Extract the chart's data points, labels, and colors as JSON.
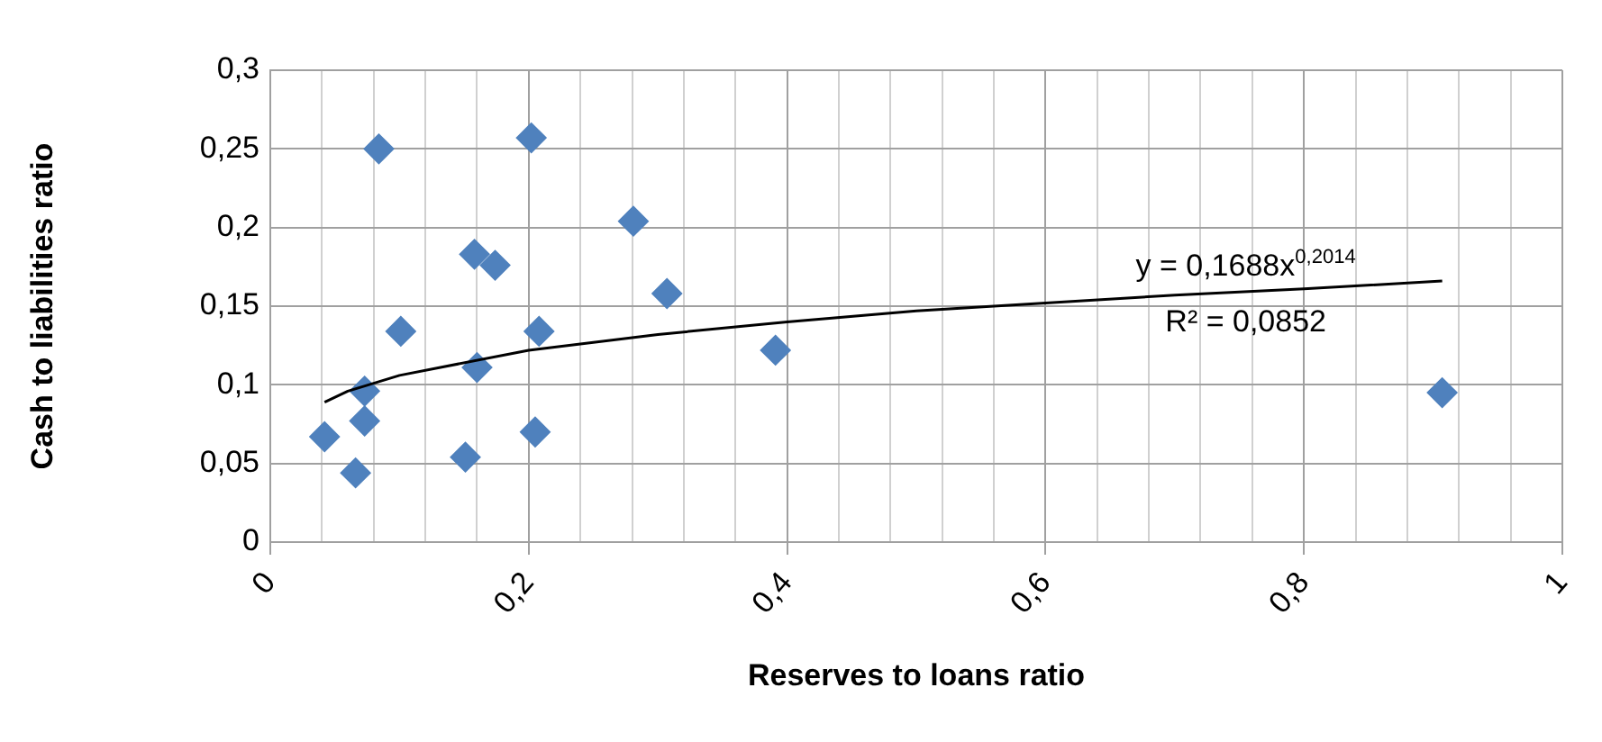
{
  "chart_data": {
    "type": "scatter",
    "xlabel": "Reserves to loans ratio",
    "ylabel": "Cash to liabilities ratio",
    "series": [
      {
        "color": "#4f81bd",
        "marker": "diamond",
        "x": [
          0.084,
          0.202,
          0.281,
          0.158,
          0.174,
          0.307,
          0.101,
          0.208,
          0.391,
          0.16,
          0.073,
          0.073,
          0.042,
          0.066,
          0.151,
          0.205,
          0.907
        ],
        "values": [
          0.25,
          0.257,
          0.204,
          0.183,
          0.176,
          0.158,
          0.134,
          0.134,
          0.122,
          0.111,
          0.096,
          0.077,
          0.067,
          0.044,
          0.054,
          0.07,
          0.095
        ]
      },
      {
        "type": "line",
        "color": "#000000",
        "marker": "none",
        "x": [
          0.042,
          0.06,
          0.1,
          0.2,
          0.3,
          0.4,
          0.5,
          0.6,
          0.7,
          0.8,
          0.907
        ],
        "values": [
          0.089,
          0.096,
          0.106,
          0.122,
          0.132,
          0.14,
          0.147,
          0.152,
          0.157,
          0.161,
          0.166
        ]
      }
    ],
    "xlim": [
      0,
      1
    ],
    "xticks": [
      0,
      {
        "value": 0.04,
        "label": null
      },
      {
        "value": 0.08,
        "label": null
      },
      {
        "value": 0.12,
        "label": null
      },
      {
        "value": 0.16,
        "label": null
      },
      {
        "value": 0.2,
        "label": "0,2"
      },
      {
        "value": 0.24,
        "label": null
      },
      {
        "value": 0.28,
        "label": null
      },
      {
        "value": 0.32,
        "label": null
      },
      {
        "value": 0.36,
        "label": null
      },
      {
        "value": 0.4,
        "label": "0,4"
      },
      {
        "value": 0.44,
        "label": null
      },
      {
        "value": 0.48,
        "label": null
      },
      {
        "value": 0.52,
        "label": null
      },
      {
        "value": 0.56,
        "label": null
      },
      {
        "value": 0.6,
        "label": "0,6"
      },
      {
        "value": 0.64,
        "label": null
      },
      {
        "value": 0.68,
        "label": null
      },
      {
        "value": 0.72,
        "label": null
      },
      {
        "value": 0.76,
        "label": null
      },
      {
        "value": 0.8,
        "label": "0,8"
      },
      {
        "value": 0.84,
        "label": null
      },
      {
        "value": 0.88,
        "label": null
      },
      {
        "value": 0.92,
        "label": null
      },
      {
        "value": 0.96,
        "label": null
      },
      1
    ],
    "ylim": [
      0,
      0.3
    ],
    "yticks": [
      0,
      {
        "value": 0.05,
        "label": "0,05"
      },
      {
        "value": 0.1,
        "label": "0,1"
      },
      {
        "value": 0.15,
        "label": "0,15"
      },
      {
        "value": 0.2,
        "label": "0,2"
      },
      {
        "value": 0.25,
        "label": "0,25"
      },
      {
        "value": 0.3,
        "label": "0,3"
      }
    ],
    "grid": true,
    "annotations": [
      "y = 0,1688x$^{0,2014}$",
      "R² = 0,0852"
    ]
  }
}
